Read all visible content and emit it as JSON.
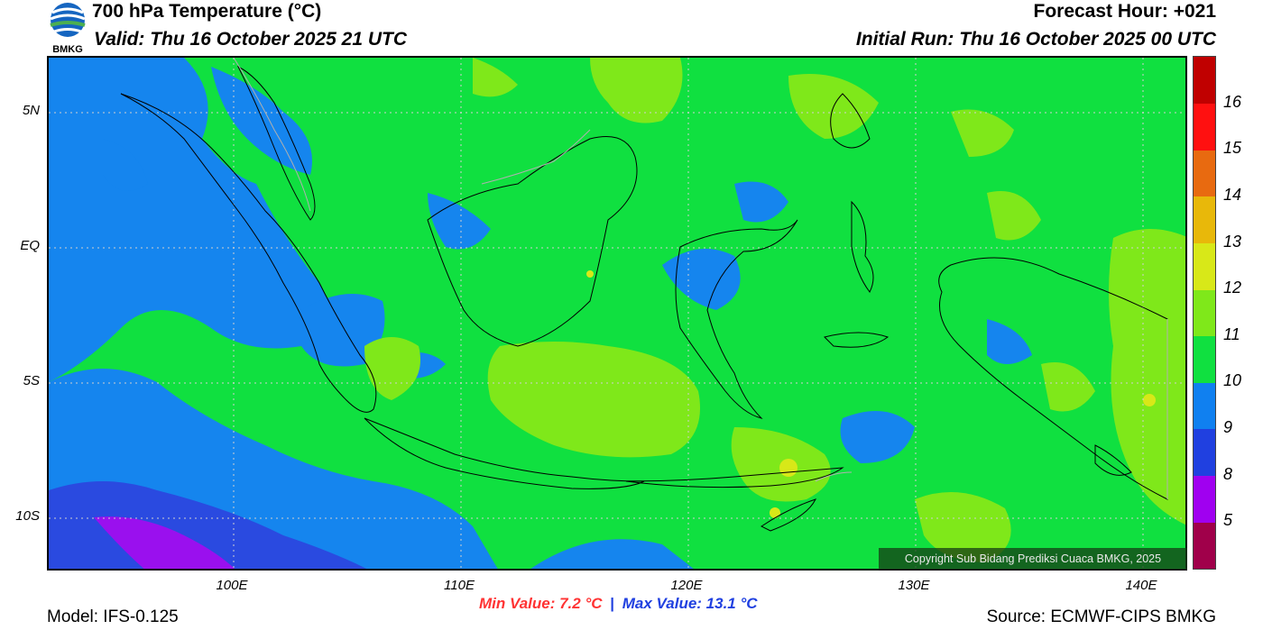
{
  "header": {
    "title": "700 hPa Temperature (°C)",
    "valid": "Valid: Thu 16 October 2025 21 UTC",
    "forecast_hour": "Forecast Hour: +021",
    "initial_run": "Initial Run: Thu 16 October 2025 00 UTC",
    "logo_text": "BMKG"
  },
  "axes": {
    "lat_ticks": [
      "5N",
      "EQ",
      "5S",
      "10S"
    ],
    "lon_ticks": [
      "100E",
      "110E",
      "120E",
      "130E",
      "140E"
    ]
  },
  "colorbar": {
    "colors": [
      "#a0004a",
      "#a000f0",
      "#2040e0",
      "#1080f0",
      "#10e040",
      "#7fe81a",
      "#d8e818",
      "#e8b80a",
      "#e86a10",
      "#ff1010",
      "#c00000"
    ],
    "labels": [
      "5",
      "8",
      "9",
      "10",
      "11",
      "12",
      "13",
      "14",
      "15",
      "16"
    ]
  },
  "stats": {
    "min_label": "Min Value: 7.2 °C",
    "max_label": "Max Value: 13.1 °C",
    "separator": "|"
  },
  "footer": {
    "model": "Model: IFS-0.125",
    "source": "Source: ECMWF-CIPS BMKG",
    "copyright": "Copyright Sub Bidang Prediksi Cuaca BMKG, 2025"
  }
}
